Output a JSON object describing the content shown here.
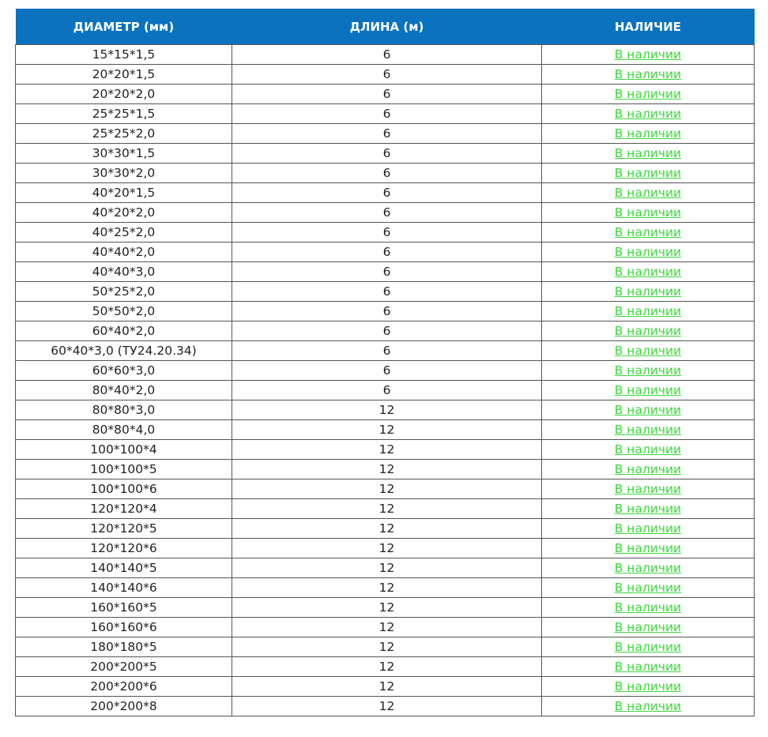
{
  "table": {
    "headers": [
      "ДИАМЕТР (мм)",
      "ДЛИНА (м)",
      "НАЛИЧИЕ"
    ],
    "rows": [
      {
        "diameter": "15*15*1,5",
        "length": "6",
        "availability": "В наличии"
      },
      {
        "diameter": "20*20*1,5",
        "length": "6",
        "availability": "В наличии"
      },
      {
        "diameter": "20*20*2,0",
        "length": "6",
        "availability": "В наличии"
      },
      {
        "diameter": "25*25*1,5",
        "length": "6",
        "availability": "В наличии"
      },
      {
        "diameter": "25*25*2,0",
        "length": "6",
        "availability": "В наличии"
      },
      {
        "diameter": "30*30*1,5",
        "length": "6",
        "availability": "В наличии"
      },
      {
        "diameter": "30*30*2,0",
        "length": "6",
        "availability": "В наличии"
      },
      {
        "diameter": "40*20*1,5",
        "length": "6",
        "availability": "В наличии"
      },
      {
        "diameter": "40*20*2,0",
        "length": "6",
        "availability": "В наличии"
      },
      {
        "diameter": "40*25*2,0",
        "length": "6",
        "availability": "В наличии"
      },
      {
        "diameter": "40*40*2,0",
        "length": "6",
        "availability": "В наличии"
      },
      {
        "diameter": "40*40*3,0",
        "length": "6",
        "availability": "В наличии"
      },
      {
        "diameter": "50*25*2,0",
        "length": "6",
        "availability": "В наличии"
      },
      {
        "diameter": "50*50*2,0",
        "length": "6",
        "availability": "В наличии"
      },
      {
        "diameter": "60*40*2,0",
        "length": "6",
        "availability": "В наличии"
      },
      {
        "diameter": "60*40*3,0 (ТУ24.20.34)",
        "length": "6",
        "availability": "В наличии"
      },
      {
        "diameter": "60*60*3,0",
        "length": "6",
        "availability": "В наличии"
      },
      {
        "diameter": "80*40*2,0",
        "length": "6",
        "availability": "В наличии"
      },
      {
        "diameter": "80*80*3,0",
        "length": "12",
        "availability": "В наличии"
      },
      {
        "diameter": "80*80*4,0",
        "length": "12",
        "availability": "В наличии"
      },
      {
        "diameter": "100*100*4",
        "length": "12",
        "availability": "В наличии"
      },
      {
        "diameter": "100*100*5",
        "length": "12",
        "availability": "В наличии"
      },
      {
        "diameter": "100*100*6",
        "length": "12",
        "availability": "В наличии"
      },
      {
        "diameter": "120*120*4",
        "length": "12",
        "availability": "В наличии"
      },
      {
        "diameter": "120*120*5",
        "length": "12",
        "availability": "В наличии"
      },
      {
        "diameter": "120*120*6",
        "length": "12",
        "availability": "В наличии"
      },
      {
        "diameter": "140*140*5",
        "length": "12",
        "availability": "В наличии"
      },
      {
        "diameter": "140*140*6",
        "length": "12",
        "availability": "В наличии"
      },
      {
        "diameter": "160*160*5",
        "length": "12",
        "availability": "В наличии"
      },
      {
        "diameter": "160*160*6",
        "length": "12",
        "availability": "В наличии"
      },
      {
        "diameter": "180*180*5",
        "length": "12",
        "availability": "В наличии"
      },
      {
        "diameter": "200*200*5",
        "length": "12",
        "availability": "В наличии"
      },
      {
        "diameter": "200*200*6",
        "length": "12",
        "availability": "В наличии"
      },
      {
        "diameter": "200*200*8",
        "length": "12",
        "availability": "В наличии"
      }
    ]
  },
  "colors": {
    "header_bg": "#0a72be",
    "header_text": "#ffffff",
    "link": "#3cd83c",
    "border": "#555555"
  }
}
